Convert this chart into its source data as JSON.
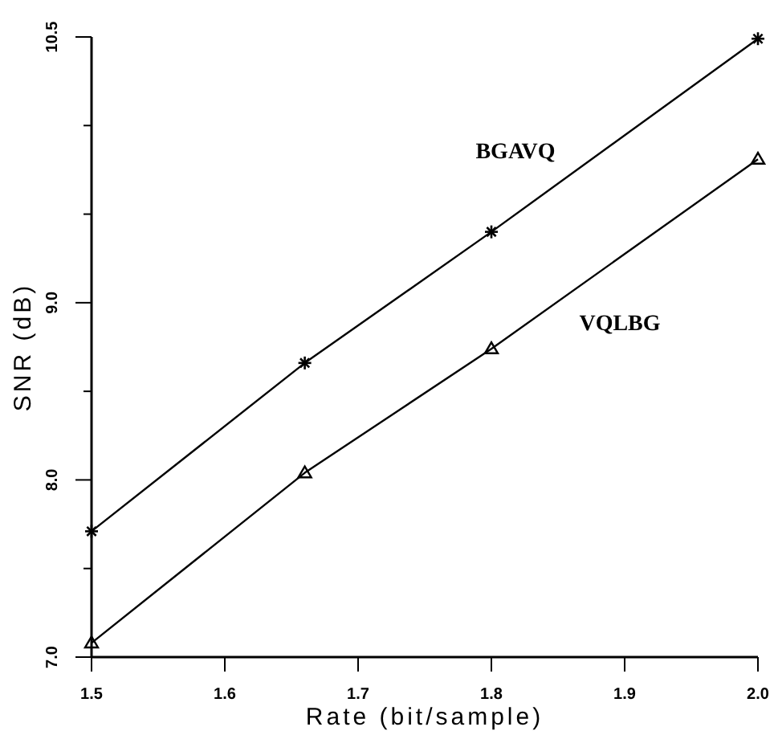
{
  "chart_data": {
    "type": "line",
    "xlabel": "Rate (bit/sample)",
    "ylabel": "SNR (dB)",
    "xlim": [
      1.5,
      2.0
    ],
    "xticks": [
      1.5,
      1.6,
      1.7,
      1.8,
      1.9,
      {
        "value": 2.0,
        "label": "2.0"
      }
    ],
    "ylim": [
      7.0,
      10.5
    ],
    "yticks": [
      {
        "value": 7.0,
        "label": "7.0"
      },
      {
        "value": 7.5,
        "label": null
      },
      {
        "value": 8.0,
        "label": "8.0"
      },
      {
        "value": 8.5,
        "label": null
      },
      {
        "value": 9.0,
        "label": "9.0"
      },
      {
        "value": 9.5,
        "label": null
      },
      {
        "value": 10.0,
        "label": null
      },
      {
        "value": 10.5,
        "label": "10.5"
      }
    ],
    "grid": false,
    "series": [
      {
        "name": "BGAVQ",
        "color": "#000000",
        "marker": "cross",
        "x": [
          1.5,
          1.66,
          1.8,
          2.0
        ],
        "values": [
          7.71,
          8.66,
          9.4,
          10.49
        ]
      },
      {
        "name": "VQLBG",
        "color": "#000000",
        "marker": "triangle",
        "x": [
          1.5,
          1.66,
          1.8,
          2.0
        ],
        "values": [
          7.08,
          8.04,
          8.74,
          9.81
        ]
      }
    ]
  }
}
